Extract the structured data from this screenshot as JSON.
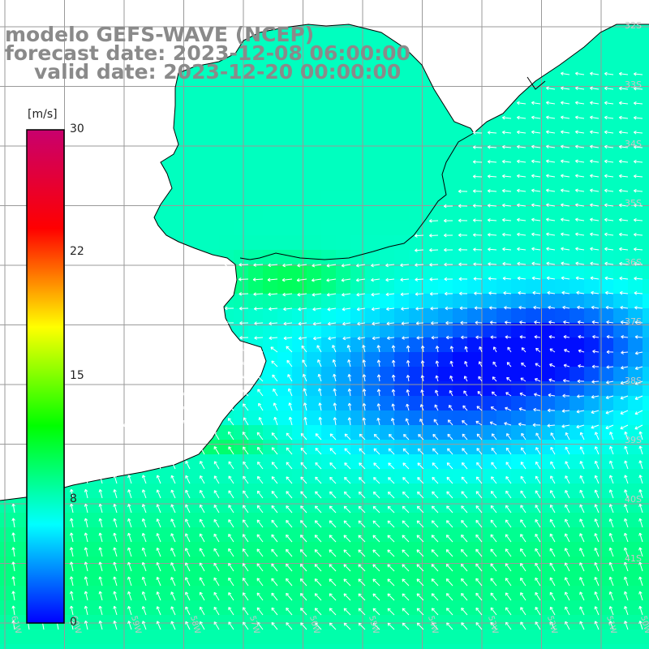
{
  "title": {
    "line1": "modelo GEFS-WAVE (NCEP)",
    "line2": "forecast date: 2023-12-08 06:00:00",
    "line3": "valid date: 2023-12-20 00:00:00"
  },
  "colorbar": {
    "unit": "[m/s]",
    "ticks": [
      "30",
      "22",
      "15",
      "8",
      "0"
    ],
    "range": [
      0,
      30
    ],
    "colors": [
      "#0000ff",
      "#00ffff",
      "#00ff00",
      "#ffff00",
      "#ff0000",
      "#c8006e"
    ]
  },
  "grid": {
    "lat_labels": [
      "32S",
      "33S",
      "34S",
      "35S",
      "36S",
      "37S",
      "38S",
      "39S",
      "40S",
      "41S"
    ],
    "lon_labels": [
      "61W",
      "60W",
      "59W",
      "58W",
      "57W",
      "56W",
      "55W",
      "54W",
      "53W",
      "52W",
      "51W",
      "50W"
    ]
  },
  "colors": {
    "land": "#ffffff",
    "coast": "#000000",
    "gridline": "#9a9a9a",
    "arrows": "#ffffff",
    "title": "#8a8a8a"
  }
}
